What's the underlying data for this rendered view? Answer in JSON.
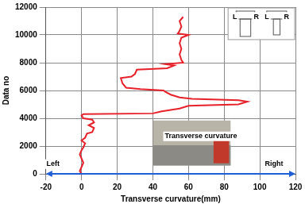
{
  "chart_data": {
    "type": "line",
    "x_label": "Transverse curvature(mm)",
    "y_label": "Data no",
    "x": [
      0,
      -1,
      0,
      1,
      0,
      -1,
      0,
      1,
      2,
      0,
      2,
      3,
      6,
      7,
      4,
      7,
      6,
      1,
      0,
      1,
      40,
      45,
      55,
      60,
      88,
      93,
      88,
      62,
      55,
      50,
      47,
      46,
      33,
      25,
      23,
      22,
      28,
      30,
      31,
      48,
      52,
      47,
      57,
      56,
      55,
      56,
      55,
      56,
      60,
      54,
      55,
      56,
      55,
      57
    ],
    "values": [
      0,
      200,
      500,
      800,
      1100,
      1400,
      1700,
      1900,
      2200,
      2400,
      2600,
      2900,
      3000,
      3300,
      3500,
      3700,
      3900,
      4000,
      4200,
      4300,
      4350,
      4500,
      4700,
      4900,
      5000,
      5200,
      5300,
      5400,
      5500,
      5700,
      5900,
      6000,
      6100,
      6200,
      6500,
      6900,
      7000,
      7200,
      7500,
      7600,
      7800,
      7900,
      8000,
      8200,
      8600,
      9000,
      9400,
      9800,
      10000,
      10100,
      10300,
      10600,
      11000,
      11300
    ],
    "color": "#e8202a",
    "xlim": [
      -20,
      120
    ],
    "xticks": [
      -20,
      0,
      20,
      40,
      60,
      80,
      100,
      120
    ],
    "ylim": [
      0,
      12000
    ],
    "yticks": [
      0,
      2000,
      4000,
      6000,
      8000,
      10000,
      12000
    ],
    "grid": true,
    "annotations": [
      {
        "text": "Left",
        "x": -16,
        "y": 700
      },
      {
        "text": "Right",
        "x": 108,
        "y": 700
      },
      {
        "text": "Transverse curvature",
        "x": 67,
        "y": 2700
      },
      {
        "text": "L",
        "x": 86,
        "y": 11300
      },
      {
        "text": "R",
        "x": 98,
        "y": 11300
      },
      {
        "text": "L",
        "x": 104,
        "y": 11300
      },
      {
        "text": "R",
        "x": 115,
        "y": 11300
      }
    ]
  }
}
